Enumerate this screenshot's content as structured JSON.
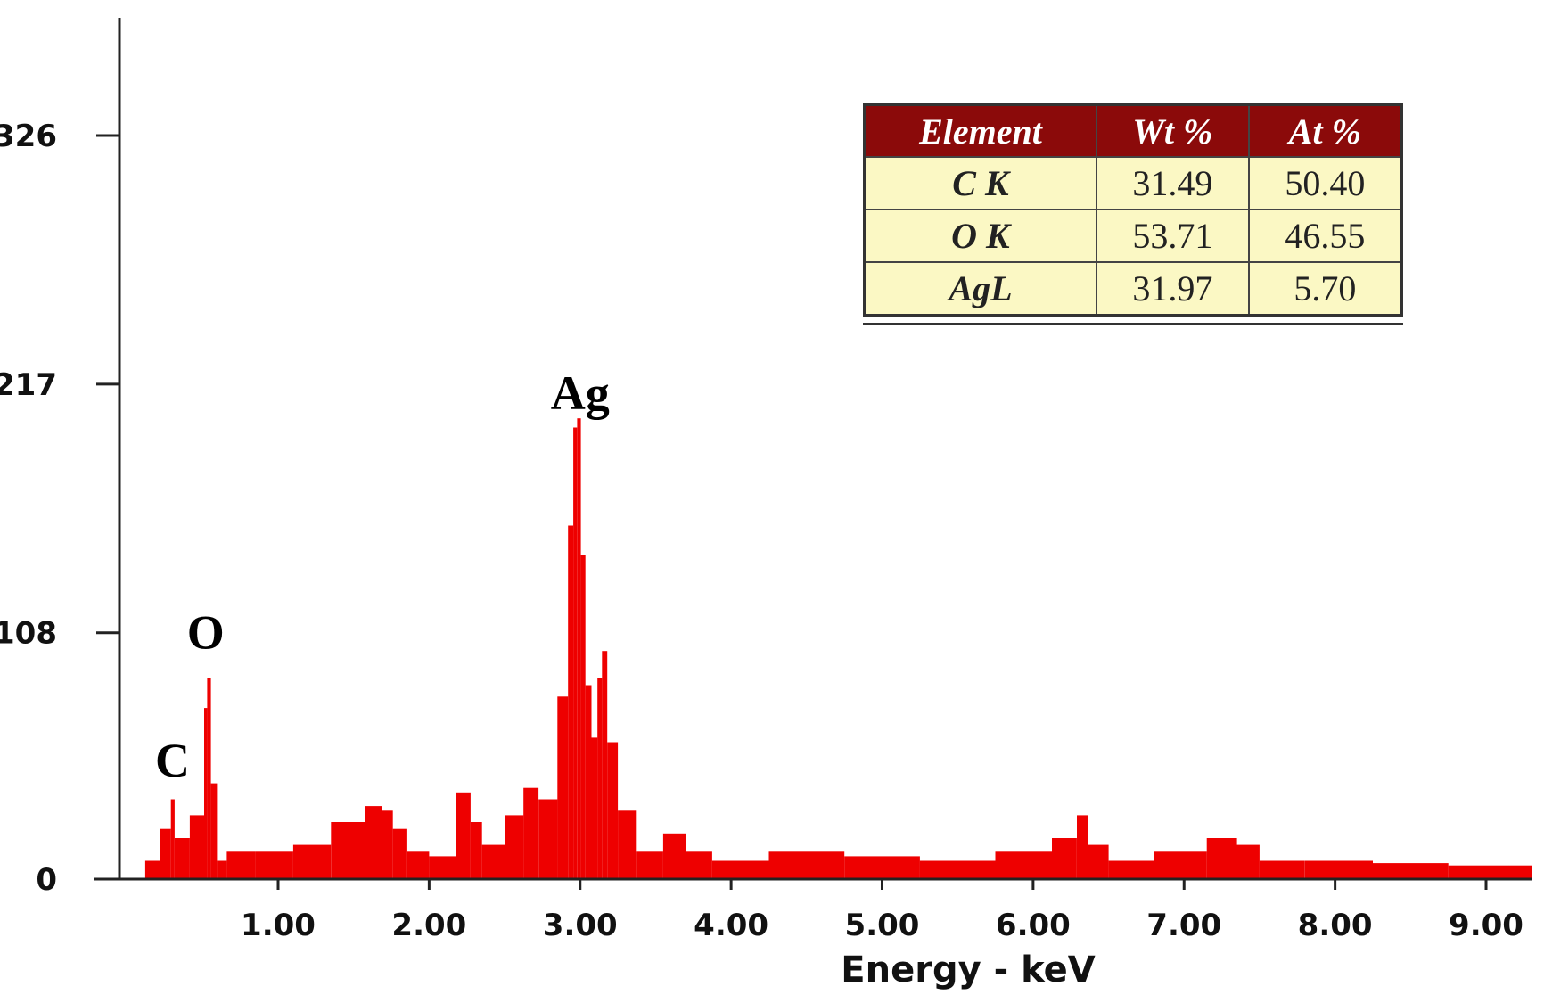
{
  "chart_data": {
    "type": "bar",
    "xlabel": "Energy - keV",
    "ylabel": "",
    "xlim": [
      0.0,
      9.3
    ],
    "ylim": [
      0,
      326
    ],
    "x_ticks": [
      "1.00",
      "2.00",
      "3.00",
      "4.00",
      "5.00",
      "6.00",
      "7.00",
      "8.00",
      "9.00"
    ],
    "y_ticks": [
      "0",
      "108",
      "217",
      "326"
    ],
    "grid": false,
    "series": [
      {
        "color": "#ee0000",
        "x": [
          0.15,
          0.28,
          0.3,
          0.33,
          0.5,
          0.52,
          0.54,
          0.57,
          0.62,
          0.7,
          1.0,
          1.2,
          1.5,
          1.65,
          1.72,
          1.8,
          1.9,
          2.1,
          2.25,
          2.3,
          2.4,
          2.6,
          2.65,
          2.8,
          2.9,
          2.94,
          2.97,
          2.99,
          3.02,
          3.05,
          3.1,
          3.13,
          3.16,
          3.2,
          3.3,
          3.45,
          3.65,
          3.75,
          4.0,
          4.5,
          5.0,
          5.5,
          6.0,
          6.25,
          6.33,
          6.4,
          6.6,
          7.0,
          7.3,
          7.4,
          7.6,
          8.0,
          8.5,
          9.0,
          9.3
        ],
        "counts": [
          8,
          22,
          35,
          18,
          28,
          75,
          88,
          42,
          8,
          12,
          12,
          15,
          25,
          32,
          30,
          22,
          12,
          10,
          38,
          25,
          15,
          28,
          40,
          35,
          80,
          155,
          198,
          202,
          142,
          85,
          62,
          88,
          100,
          60,
          30,
          12,
          20,
          12,
          8,
          12,
          10,
          8,
          12,
          18,
          28,
          15,
          8,
          12,
          18,
          15,
          8,
          8,
          7,
          6,
          6
        ]
      }
    ],
    "annotations": [
      {
        "text": "C",
        "x": 0.3,
        "y": 52
      },
      {
        "text": "O",
        "x": 0.52,
        "y": 108
      },
      {
        "text": "Ag",
        "x": 3.0,
        "y": 213
      }
    ]
  },
  "table": {
    "headers": [
      "Element",
      "Wt %",
      "At %"
    ],
    "rows": [
      [
        "C K",
        "31.49",
        "50.40"
      ],
      [
        "O K",
        "53.71",
        "46.55"
      ],
      [
        "AgL",
        "31.97",
        "5.70"
      ]
    ]
  }
}
